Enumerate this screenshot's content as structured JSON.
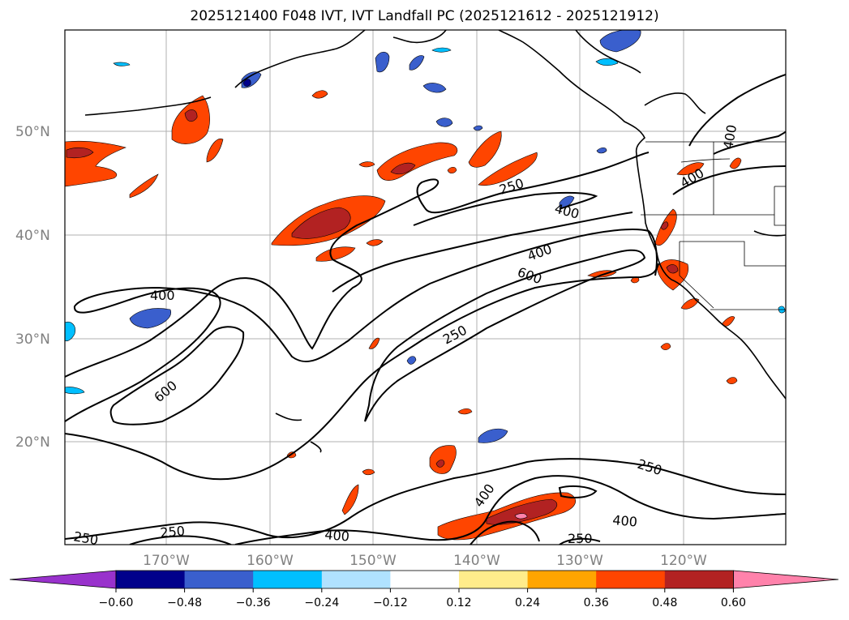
{
  "title": "2025121400 F048 IVT, IVT Landfall PC (2025121612 - 2025121912)",
  "map": {
    "lat_labels": [
      "50°N",
      "40°N",
      "30°N",
      "20°N"
    ],
    "lon_labels": [
      "170°W",
      "160°W",
      "150°W",
      "140°W",
      "130°W",
      "120°W"
    ],
    "contour_labels": {
      "c250_a": "250",
      "c400_a": "400",
      "c400_b": "400",
      "c600_a": "600",
      "c250_b": "250",
      "c400_c": "400",
      "c600_b": "600",
      "c400_d": "400",
      "c250_c": "250",
      "c400_e": "400",
      "c400_f": "400",
      "c250_d": "250",
      "c250_e": "250",
      "c250_f": "250",
      "c400_g": "400"
    }
  },
  "colorbar": {
    "ticks": [
      "−0.60",
      "−0.48",
      "−0.36",
      "−0.24",
      "−0.12",
      "0.12",
      "0.24",
      "0.36",
      "0.48",
      "0.60"
    ],
    "colors": [
      "#9932cc",
      "#00008b",
      "#3a5fcd",
      "#00bfff",
      "#b0e2ff",
      "#ffffff",
      "#ffec8b",
      "#ffa500",
      "#ff4500",
      "#b22222",
      "#ff82ab"
    ]
  }
}
